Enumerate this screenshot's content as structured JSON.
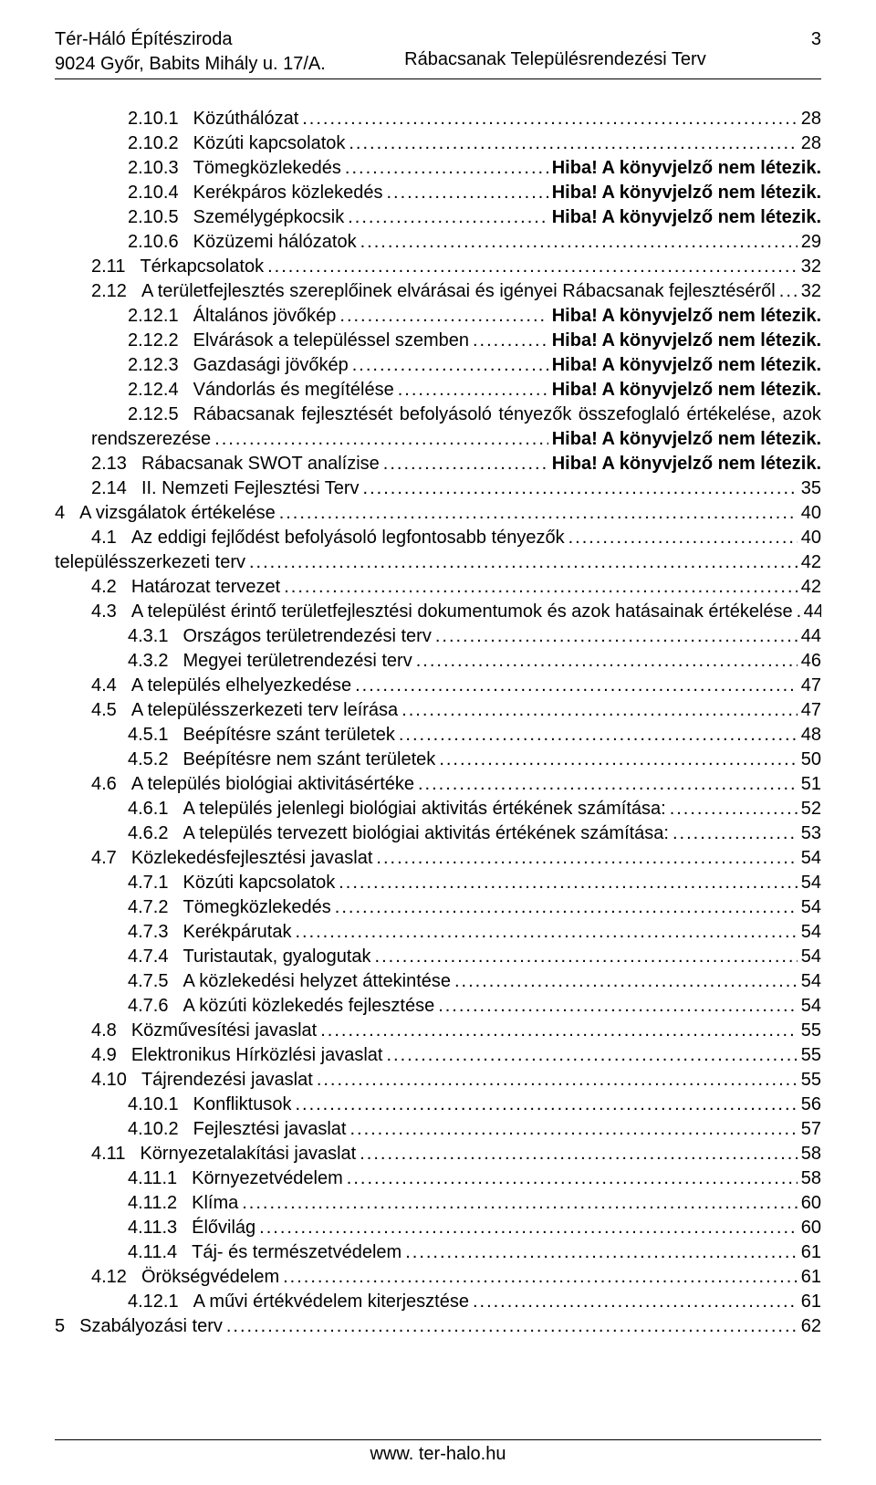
{
  "header": {
    "company": "Tér-Háló Építésziroda",
    "address": "9024 Győr, Babits Mihály u. 17/A.",
    "docTitle": "Rábacsanak Településrendezési Terv",
    "pageNum": "3"
  },
  "footer": {
    "url": "www. ter-halo.hu"
  },
  "toc": [
    {
      "indent": 2,
      "num": "2.10.1",
      "title": "Közúthálózat",
      "page": "28"
    },
    {
      "indent": 2,
      "num": "2.10.2",
      "title": "Közúti kapcsolatok",
      "page": "28"
    },
    {
      "indent": 2,
      "num": "2.10.3",
      "title": "Tömegközlekedés",
      "page": "Hiba! A könyvjelző nem létezik.",
      "boldPage": true
    },
    {
      "indent": 2,
      "num": "2.10.4",
      "title": "Kerékpáros közlekedés",
      "page": "Hiba! A könyvjelző nem létezik.",
      "boldPage": true
    },
    {
      "indent": 2,
      "num": "2.10.5",
      "title": "Személygépkocsik",
      "page": "Hiba! A könyvjelző nem létezik.",
      "boldPage": true
    },
    {
      "indent": 2,
      "num": "2.10.6",
      "title": "Közüzemi hálózatok",
      "page": "29"
    },
    {
      "indent": 1,
      "num": "2.11",
      "title": "Térkapcsolatok",
      "page": "32"
    },
    {
      "indent": 1,
      "num": "2.12",
      "title": "A területfejlesztés szereplőinek elvárásai és igényei Rábacsanak fejlesztéséről",
      "page": "32"
    },
    {
      "indent": 2,
      "num": "2.12.1",
      "title": "Általános jövőkép",
      "page": "Hiba! A könyvjelző nem létezik.",
      "boldPage": true
    },
    {
      "indent": 2,
      "num": "2.12.2",
      "title": "Elvárások a településsel szemben",
      "page": "Hiba! A könyvjelző nem létezik.",
      "boldPage": true
    },
    {
      "indent": 2,
      "num": "2.12.3",
      "title": "Gazdasági jövőkép",
      "page": "Hiba! A könyvjelző nem létezik.",
      "boldPage": true
    },
    {
      "indent": 2,
      "num": "2.12.4",
      "title": "Vándorlás és megítélése",
      "page": "Hiba! A könyvjelző nem létezik.",
      "boldPage": true
    },
    {
      "indent": 2,
      "num": "2.12.5",
      "title": "Rábacsanak fejlesztését befolyásoló tényezők összefoglaló értékelése, azok",
      "wrap": true,
      "wrapLine": "rendszerezése",
      "page": "Hiba! A könyvjelző nem létezik.",
      "boldPage": true
    },
    {
      "indent": 1,
      "num": "2.13",
      "title": "Rábacsanak SWOT analízise",
      "page": "Hiba! A könyvjelző nem létezik.",
      "boldPage": true
    },
    {
      "indent": 1,
      "num": "2.14",
      "title": "II. Nemzeti Fejlesztési Terv",
      "page": "35"
    },
    {
      "indent": 0,
      "num": "4",
      "title": "A vizsgálatok értékelése",
      "page": "40"
    },
    {
      "indent": 1,
      "num": "4.1",
      "title": "Az eddigi fejlődést befolyásoló legfontosabb tényezők",
      "page": "40"
    },
    {
      "indent": 0,
      "num": "",
      "title": "településszerkezeti terv",
      "page": "42",
      "noNum": true
    },
    {
      "indent": 1,
      "num": "4.2",
      "title": "Határozat tervezet",
      "page": "42"
    },
    {
      "indent": 1,
      "num": "4.3",
      "title": "A települést érintő területfejlesztési dokumentumok és azok hatásainak értékelése",
      "page": "44"
    },
    {
      "indent": 2,
      "num": "4.3.1",
      "title": "Országos területrendezési terv",
      "page": "44"
    },
    {
      "indent": 2,
      "num": "4.3.2",
      "title": "Megyei területrendezési terv",
      "page": "46"
    },
    {
      "indent": 1,
      "num": "4.4",
      "title": "A település elhelyezkedése",
      "page": "47"
    },
    {
      "indent": 1,
      "num": "4.5",
      "title": "A településszerkezeti terv leírása",
      "page": "47"
    },
    {
      "indent": 2,
      "num": "4.5.1",
      "title": "Beépítésre szánt területek",
      "page": "48"
    },
    {
      "indent": 2,
      "num": "4.5.2",
      "title": "Beépítésre nem szánt területek",
      "page": "50"
    },
    {
      "indent": 1,
      "num": "4.6",
      "title": "A település biológiai aktivitásértéke",
      "page": "51"
    },
    {
      "indent": 2,
      "num": "4.6.1",
      "title": "A település jelenlegi biológiai aktivitás értékének számítása:",
      "page": "52"
    },
    {
      "indent": 2,
      "num": "4.6.2",
      "title": "A település tervezett biológiai aktivitás értékének számítása:",
      "page": "53"
    },
    {
      "indent": 1,
      "num": "4.7",
      "title": "Közlekedésfejlesztési javaslat",
      "page": "54"
    },
    {
      "indent": 2,
      "num": "4.7.1",
      "title": "Közúti kapcsolatok",
      "page": "54"
    },
    {
      "indent": 2,
      "num": "4.7.2",
      "title": "Tömegközlekedés",
      "page": "54"
    },
    {
      "indent": 2,
      "num": "4.7.3",
      "title": "Kerékpárutak",
      "page": "54"
    },
    {
      "indent": 2,
      "num": "4.7.4",
      "title": "Turistautak, gyalogutak",
      "page": "54"
    },
    {
      "indent": 2,
      "num": "4.7.5",
      "title": "A közlekedési helyzet áttekintése",
      "page": "54"
    },
    {
      "indent": 2,
      "num": "4.7.6",
      "title": "A közúti közlekedés fejlesztése",
      "page": "54"
    },
    {
      "indent": 1,
      "num": "4.8",
      "title": "Közművesítési javaslat",
      "page": "55"
    },
    {
      "indent": 1,
      "num": "4.9",
      "title": "Elektronikus Hírközlési javaslat",
      "page": "55"
    },
    {
      "indent": 1,
      "num": "4.10",
      "title": "Tájrendezési javaslat",
      "page": "55"
    },
    {
      "indent": 2,
      "num": "4.10.1",
      "title": "Konfliktusok",
      "page": "56"
    },
    {
      "indent": 2,
      "num": "4.10.2",
      "title": "Fejlesztési javaslat",
      "page": "57"
    },
    {
      "indent": 1,
      "num": "4.11",
      "title": "Környezetalakítási javaslat",
      "page": "58"
    },
    {
      "indent": 2,
      "num": "4.11.1",
      "title": "Környezetvédelem",
      "page": "58"
    },
    {
      "indent": 2,
      "num": "4.11.2",
      "title": "Klíma",
      "page": "60"
    },
    {
      "indent": 2,
      "num": "4.11.3",
      "title": "Élővilág",
      "page": "60"
    },
    {
      "indent": 2,
      "num": "4.11.4",
      "title": "Táj- és természetvédelem",
      "page": "61"
    },
    {
      "indent": 1,
      "num": "4.12",
      "title": "Örökségvédelem",
      "page": "61"
    },
    {
      "indent": 2,
      "num": "4.12.1",
      "title": "A művi értékvédelem kiterjesztése",
      "page": "61"
    },
    {
      "indent": 0,
      "num": "5",
      "title": "Szabályozási terv",
      "page": "62"
    }
  ]
}
